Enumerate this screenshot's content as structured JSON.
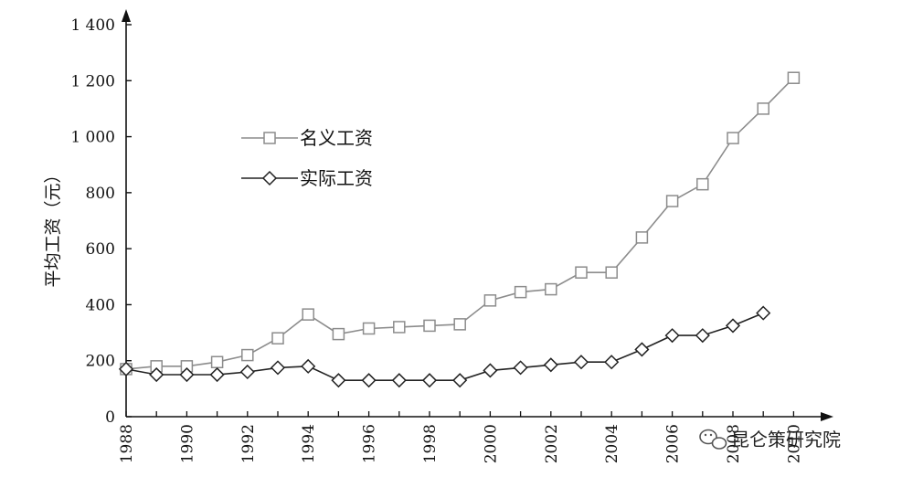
{
  "chart_data": {
    "type": "line",
    "title": "",
    "xlabel": "",
    "ylabel": "平均工资（元）",
    "xlim": [
      1988,
      2010.5
    ],
    "ylim": [
      0,
      1400
    ],
    "x_ticks": [
      "1988",
      "1990",
      "1992",
      "1994",
      "1996",
      "1998",
      "2000",
      "2002",
      "2004",
      "2006",
      "2008",
      "2010"
    ],
    "y_ticks": [
      {
        "value": 0,
        "label": "0"
      },
      {
        "value": 200,
        "label": "200"
      },
      {
        "value": 400,
        "label": "400"
      },
      {
        "value": 600,
        "label": "600"
      },
      {
        "value": 800,
        "label": "800"
      },
      {
        "value": 1000,
        "label": "1 000"
      },
      {
        "value": 1200,
        "label": "1 200"
      },
      {
        "value": 1400,
        "label": "1 400"
      }
    ],
    "grid": false,
    "legend_position": "upper-left",
    "series": [
      {
        "name": "名义工资",
        "marker": "square",
        "color": "#8c8c8c",
        "x": [
          1988,
          1989,
          1990,
          1991,
          1992,
          1993,
          1994,
          1995,
          1996,
          1997,
          1998,
          1999,
          2000,
          2001,
          2002,
          2003,
          2004,
          2005,
          2006,
          2007,
          2008,
          2009,
          2010
        ],
        "values": [
          170,
          180,
          180,
          195,
          220,
          280,
          365,
          295,
          315,
          320,
          325,
          330,
          415,
          445,
          455,
          515,
          515,
          640,
          770,
          830,
          995,
          1100,
          1210
        ]
      },
      {
        "name": "实际工资",
        "marker": "diamond",
        "color": "#222222",
        "x": [
          1988,
          1989,
          1990,
          1991,
          1992,
          1993,
          1994,
          1995,
          1996,
          1997,
          1998,
          1999,
          2000,
          2001,
          2002,
          2003,
          2004,
          2005,
          2006,
          2007,
          2008,
          2009
        ],
        "values": [
          170,
          150,
          150,
          150,
          160,
          175,
          180,
          130,
          130,
          130,
          130,
          130,
          165,
          175,
          185,
          195,
          195,
          240,
          290,
          290,
          325,
          370
        ]
      }
    ]
  },
  "watermark": {
    "icon": "wechat-icon",
    "text": "昆仑策研究院"
  }
}
